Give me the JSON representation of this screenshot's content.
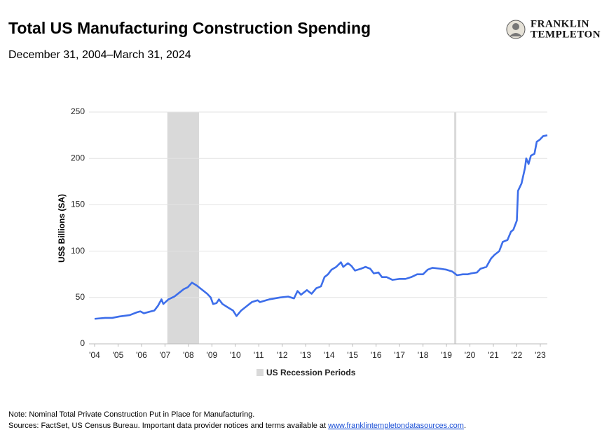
{
  "chart_data": {
    "type": "line",
    "title": "Total US Manufacturing Construction Spending",
    "subtitle": "December 31, 2004–March 31, 2024",
    "y_label": "US$ Billions (SA)",
    "color": "#3d6eea",
    "x": [
      2004.0,
      2004.45,
      2004.75,
      2005.05,
      2005.5,
      2005.8,
      2005.95,
      2006.1,
      2006.4,
      2006.55,
      2006.7,
      2006.85,
      2006.93,
      2007.15,
      2007.4,
      2007.6,
      2007.8,
      2007.97,
      2008.15,
      2008.35,
      2008.55,
      2008.8,
      2008.95,
      2009.05,
      2009.2,
      2009.3,
      2009.45,
      2009.7,
      2009.9,
      2010.05,
      2010.25,
      2010.5,
      2010.7,
      2010.95,
      2011.05,
      2011.45,
      2011.9,
      2012.25,
      2012.5,
      2012.65,
      2012.8,
      2013.05,
      2013.25,
      2013.45,
      2013.65,
      2013.8,
      2013.95,
      2014.1,
      2014.3,
      2014.5,
      2014.6,
      2014.8,
      2014.95,
      2015.1,
      2015.35,
      2015.55,
      2015.75,
      2015.9,
      2016.1,
      2016.25,
      2016.45,
      2016.7,
      2017.0,
      2017.25,
      2017.5,
      2017.75,
      2018.0,
      2018.2,
      2018.4,
      2018.75,
      2019.0,
      2019.25,
      2019.45,
      2019.7,
      2019.9,
      2020.05,
      2020.3,
      2020.45,
      2020.7,
      2020.9,
      2021.05,
      2021.25,
      2021.4,
      2021.6,
      2021.75,
      2021.85,
      2022.0,
      2022.05,
      2022.2,
      2022.35,
      2022.4,
      2022.5,
      2022.6,
      2022.75,
      2022.85,
      2022.97,
      2023.12,
      2023.3
    ],
    "values": [
      27,
      28,
      28,
      29.5,
      31,
      34,
      35,
      33,
      35,
      36,
      41,
      48,
      43,
      48,
      51,
      55,
      59,
      61,
      66,
      63,
      59,
      54,
      50,
      43,
      44,
      48,
      43,
      39,
      36,
      30,
      36,
      41,
      45,
      47,
      45,
      48,
      50,
      51,
      49,
      57,
      53,
      58,
      54,
      60,
      62,
      72,
      75,
      80,
      83,
      88,
      83,
      87,
      84,
      79,
      81,
      83,
      81,
      76,
      77,
      72,
      72,
      69,
      70,
      70,
      72,
      75,
      75,
      80,
      82,
      81,
      80,
      78,
      74,
      75,
      75,
      76,
      77,
      81,
      83,
      92,
      96,
      100,
      110,
      112,
      121,
      123,
      133,
      165,
      173,
      190,
      200,
      194,
      203,
      205,
      218,
      220,
      224,
      225
    ],
    "xlim": [
      2004,
      2023.3
    ],
    "xticks": [
      {
        "value": 2004,
        "label": "'04"
      },
      {
        "value": 2005,
        "label": "'05"
      },
      {
        "value": 2006,
        "label": "'06"
      },
      {
        "value": 2007,
        "label": "'07"
      },
      {
        "value": 2008,
        "label": "'08"
      },
      {
        "value": 2009,
        "label": "'09"
      },
      {
        "value": 2010,
        "label": "'10"
      },
      {
        "value": 2011,
        "label": "'11"
      },
      {
        "value": 2012,
        "label": "'12"
      },
      {
        "value": 2013,
        "label": "'13"
      },
      {
        "value": 2014,
        "label": "'14"
      },
      {
        "value": 2015,
        "label": "'15"
      },
      {
        "value": 2016,
        "label": "'16"
      },
      {
        "value": 2017,
        "label": "'17"
      },
      {
        "value": 2018,
        "label": "'18"
      },
      {
        "value": 2019,
        "label": "'19"
      },
      {
        "value": 2020,
        "label": "'20"
      },
      {
        "value": 2021,
        "label": "'21"
      },
      {
        "value": 2022,
        "label": "'22"
      },
      {
        "value": 2023,
        "label": "'23"
      }
    ],
    "ylim": [
      0,
      250
    ],
    "yticks": [
      0,
      50,
      100,
      150,
      200,
      250
    ],
    "grid": true,
    "recessions": {
      "label": "US Recession Periods",
      "color": "#d9d9d9",
      "periods": [
        [
          2007.1,
          2008.45
        ],
        [
          2019.33,
          2019.42
        ]
      ]
    }
  },
  "logo": {
    "line1": "FRANKLIN",
    "line2": "TEMPLETON"
  },
  "footnotes": {
    "note": "Note: Nominal Total Private Construction Put in Place for Manufacturing.",
    "sources": "Sources: FactSet, US Census Bureau. Important data provider notices and terms available at ",
    "link": "www.franklintempletondatasources.com",
    "end": "."
  }
}
